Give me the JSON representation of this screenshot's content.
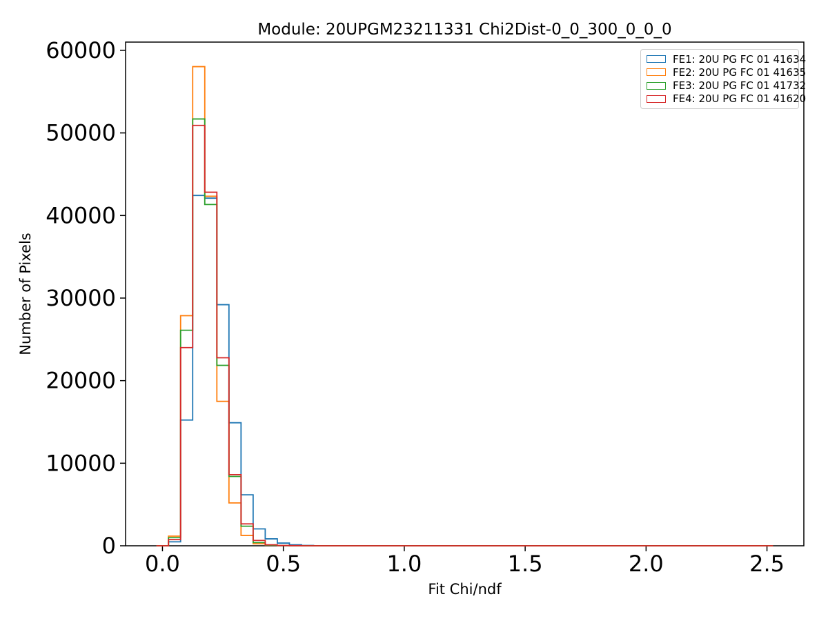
{
  "chart_data": {
    "type": "histogram",
    "style": "step-outline",
    "title": "Module: 20UPGM23211331 Chi2Dist-0_0_300_0_0_0",
    "xlabel": "Fit Chi/ndf",
    "ylabel": "Number of Pixels",
    "xlim": [
      -0.1525,
      2.6525
    ],
    "ylim": [
      0,
      61000
    ],
    "xticks": {
      "values": [
        0.0,
        0.5,
        1.0,
        1.5,
        2.0,
        2.5
      ],
      "labels": [
        "0.0",
        "0.5",
        "1.0",
        "1.5",
        "2.0",
        "2.5"
      ]
    },
    "yticks": {
      "values": [
        0,
        10000,
        20000,
        30000,
        40000,
        50000,
        60000
      ],
      "labels": [
        "0",
        "10000",
        "20000",
        "30000",
        "40000",
        "50000",
        "60000"
      ]
    },
    "grid": false,
    "legend_position": "upper right",
    "bins": {
      "start": -0.025,
      "width": 0.05,
      "baseline_end": 2.525,
      "note": "counts listed from first bin edge -0.025; all remaining bins up to 2.525 have 0 counts"
    },
    "series": [
      {
        "name": "FE1",
        "label": "FE1: 20U PG FC 01 41634",
        "color": "#1f77b4",
        "counts": [
          0,
          480,
          15230,
          42430,
          42100,
          29200,
          14900,
          6170,
          2050,
          840,
          330,
          120,
          40
        ]
      },
      {
        "name": "FE2",
        "label": "FE2: 20U PG FC 01 41635",
        "color": "#ff7f0e",
        "counts": [
          0,
          1170,
          27870,
          58030,
          42330,
          17490,
          5190,
          1260,
          250,
          60,
          20,
          10,
          0
        ]
      },
      {
        "name": "FE3",
        "label": "FE3: 20U PG FC 01 41732",
        "color": "#2ca02c",
        "counts": [
          0,
          980,
          26100,
          51690,
          41330,
          21850,
          8400,
          2370,
          400,
          80,
          30,
          10,
          0
        ]
      },
      {
        "name": "FE4",
        "label": "FE4: 20U PG FC 01 41620",
        "color": "#d62728",
        "counts": [
          0,
          750,
          24000,
          50910,
          42820,
          22770,
          8620,
          2650,
          650,
          120,
          40,
          15,
          0
        ]
      }
    ]
  }
}
